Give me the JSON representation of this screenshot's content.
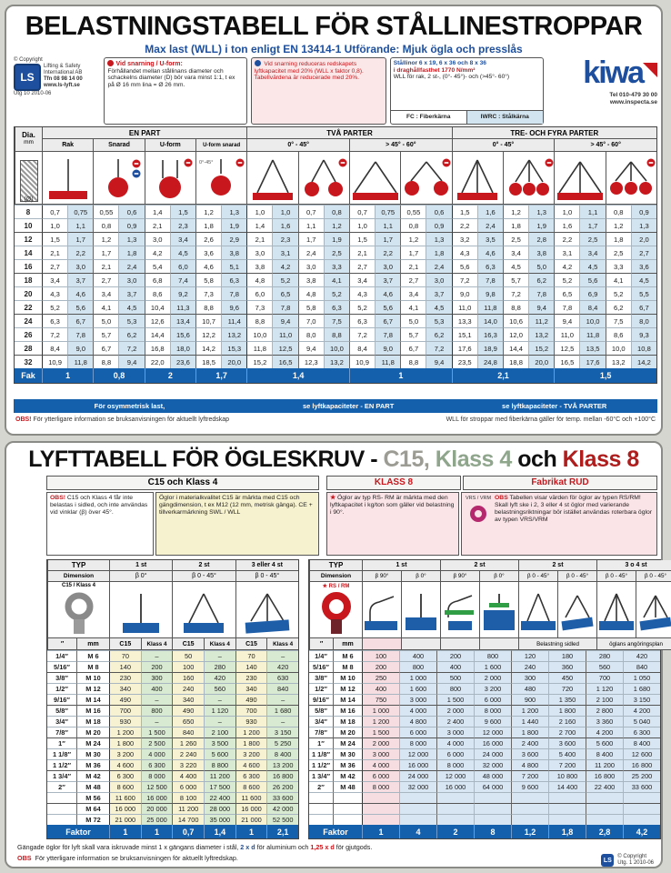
{
  "upper": {
    "title": "BELASTNINGSTABELL FÖR STÅLLINESTROPPAR",
    "subtitle": "Max last (WLL) i ton enligt EN 13414-1   Utförande: Mjuk ögla och presslås",
    "publisher": {
      "copyright": "© Copyright",
      "name1": "Lifting & Safety",
      "name2": "International AB",
      "phone": "Tfn  08 98 14 00",
      "web": "www.ls-lyft.se",
      "edition": "Utg 10  2010-06"
    },
    "info1": {
      "title": "Vid snarning / U-form:",
      "body": "Förhållandet mellan stållinans diameter och schackelns diameter (D) bör vara minst 1:1, t ex på Ø 16 mm lina = Ø 26 mm."
    },
    "info2": {
      "body": "Vid snarning reduceras redskapets lyftkapacitet med 20% (WLL x faktor 0,8). Tabellvärdena är reducerade med 20%."
    },
    "info3": {
      "line1": "Stållinor 6 x 19, 6 x 36 och 8 x 36",
      "line2": "i draghållfasthet 1770 N/mm²",
      "line3": "WLL för rak, 2 st-, (0°- 45°)- och (>45°- 60°)",
      "fc": "FC : Fiberkärna",
      "iwrc": "IWRC : Stålkärna"
    },
    "brand": {
      "name": "kiwa",
      "phone": "Tel 010-479 30 00",
      "web": "www.inspecta.se"
    },
    "table": {
      "dia_header": "Dia.",
      "dia_mm": "mm",
      "dia_unit": "(Ø)",
      "groups": [
        "EN PART",
        "TVÅ PARTER",
        "TRE- OCH FYRA PARTER"
      ],
      "subheaders": [
        "Rak",
        "Snarad",
        "U-form",
        "U-form snarad",
        "0° - 45°",
        "> 45° - 60°",
        "0° - 45°",
        "> 45° - 60°"
      ],
      "rows": [
        [
          "8",
          "0,7",
          "0,75",
          "0,55",
          "0,6",
          "1,4",
          "1,5",
          "1,2",
          "1,3",
          "1,0",
          "1,0",
          "0,7",
          "0,8",
          "0,7",
          "0,75",
          "0,55",
          "0,6",
          "1,5",
          "1,6",
          "1,2",
          "1,3",
          "1,0",
          "1,1",
          "0,8",
          "0,9"
        ],
        [
          "10",
          "1,0",
          "1,1",
          "0,8",
          "0,9",
          "2,1",
          "2,3",
          "1,8",
          "1,9",
          "1,4",
          "1,6",
          "1,1",
          "1,2",
          "1,0",
          "1,1",
          "0,8",
          "0,9",
          "2,2",
          "2,4",
          "1,8",
          "1,9",
          "1,6",
          "1,7",
          "1,2",
          "1,3"
        ],
        [
          "12",
          "1,5",
          "1,7",
          "1,2",
          "1,3",
          "3,0",
          "3,4",
          "2,6",
          "2,9",
          "2,1",
          "2,3",
          "1,7",
          "1,9",
          "1,5",
          "1,7",
          "1,2",
          "1,3",
          "3,2",
          "3,5",
          "2,5",
          "2,8",
          "2,2",
          "2,5",
          "1,8",
          "2,0"
        ],
        [
          "14",
          "2,1",
          "2,2",
          "1,7",
          "1,8",
          "4,2",
          "4,5",
          "3,6",
          "3,8",
          "3,0",
          "3,1",
          "2,4",
          "2,5",
          "2,1",
          "2,2",
          "1,7",
          "1,8",
          "4,3",
          "4,6",
          "3,4",
          "3,8",
          "3,1",
          "3,4",
          "2,5",
          "2,7"
        ],
        [
          "16",
          "2,7",
          "3,0",
          "2,1",
          "2,4",
          "5,4",
          "6,0",
          "4,6",
          "5,1",
          "3,8",
          "4,2",
          "3,0",
          "3,3",
          "2,7",
          "3,0",
          "2,1",
          "2,4",
          "5,6",
          "6,3",
          "4,5",
          "5,0",
          "4,2",
          "4,5",
          "3,3",
          "3,6"
        ],
        [
          "18",
          "3,4",
          "3,7",
          "2,7",
          "3,0",
          "6,8",
          "7,4",
          "5,8",
          "6,3",
          "4,8",
          "5,2",
          "3,8",
          "4,1",
          "3,4",
          "3,7",
          "2,7",
          "3,0",
          "7,2",
          "7,8",
          "5,7",
          "6,2",
          "5,2",
          "5,6",
          "4,1",
          "4,5"
        ],
        [
          "20",
          "4,3",
          "4,6",
          "3,4",
          "3,7",
          "8,6",
          "9,2",
          "7,3",
          "7,8",
          "6,0",
          "6,5",
          "4,8",
          "5,2",
          "4,3",
          "4,6",
          "3,4",
          "3,7",
          "9,0",
          "9,8",
          "7,2",
          "7,8",
          "6,5",
          "6,9",
          "5,2",
          "5,5"
        ],
        [
          "22",
          "5,2",
          "5,6",
          "4,1",
          "4,5",
          "10,4",
          "11,3",
          "8,8",
          "9,6",
          "7,3",
          "7,8",
          "5,8",
          "6,3",
          "5,2",
          "5,6",
          "4,1",
          "4,5",
          "11,0",
          "11,8",
          "8,8",
          "9,4",
          "7,8",
          "8,4",
          "6,2",
          "6,7"
        ],
        [
          "24",
          "6,3",
          "6,7",
          "5,0",
          "5,3",
          "12,6",
          "13,4",
          "10,7",
          "11,4",
          "8,8",
          "9,4",
          "7,0",
          "7,5",
          "6,3",
          "6,7",
          "5,0",
          "5,3",
          "13,3",
          "14,0",
          "10,6",
          "11,2",
          "9,4",
          "10,0",
          "7,5",
          "8,0"
        ],
        [
          "26",
          "7,2",
          "7,8",
          "5,7",
          "6,2",
          "14,4",
          "15,6",
          "12,2",
          "13,2",
          "10,0",
          "11,0",
          "8,0",
          "8,8",
          "7,2",
          "7,8",
          "5,7",
          "6,2",
          "15,1",
          "16,3",
          "12,0",
          "13,2",
          "11,0",
          "11,8",
          "8,6",
          "9,3"
        ],
        [
          "28",
          "8,4",
          "9,0",
          "6,7",
          "7,2",
          "16,8",
          "18,0",
          "14,2",
          "15,3",
          "11,8",
          "12,5",
          "9,4",
          "10,0",
          "8,4",
          "9,0",
          "6,7",
          "7,2",
          "17,6",
          "18,9",
          "14,4",
          "15,2",
          "12,5",
          "13,5",
          "10,0",
          "10,8"
        ],
        [
          "32",
          "10,9",
          "11,8",
          "8,8",
          "9,4",
          "22,0",
          "23,6",
          "18,5",
          "20,0",
          "15,2",
          "16,5",
          "12,3",
          "13,2",
          "10,9",
          "11,8",
          "8,8",
          "9,4",
          "23,5",
          "24,8",
          "18,8",
          "20,0",
          "16,5",
          "17,6",
          "13,2",
          "14,2"
        ]
      ],
      "factor_label": "Fak",
      "factors": [
        "1",
        "0,8",
        "2",
        "1,7",
        "1,4",
        "1",
        "2,1",
        "1,5"
      ],
      "notes_blue": [
        "För osymmetrisk last,",
        "se lyftkapaciteter - EN PART",
        "se lyftkapaciteter - TVÅ PARTER"
      ],
      "obs_label": "OBS!",
      "obs_text": "För ytterligare information se bruksanvisningen för aktuellt lyftredskap",
      "note_right": "WLL för stroppar med fiberkärna gäller för temp. mellan -60°C och +100°C"
    }
  },
  "lower": {
    "title_parts": [
      "LYFTTABELL FÖR ÖGLESKRUV - ",
      "C15, ",
      "Klass 4 ",
      "och ",
      "Klass 8"
    ],
    "c15": {
      "header": "C15 och Klass 4",
      "obs_label": "OBS!",
      "obs_text": "C15 och Klass 4 får inte belastas i sidled, och inte användas vid vinklar (β) över 45°.",
      "info_text": "Öglor i materialkvalitet C15 är märkta med C15 och gängdimension, t ex M12 (12 mm, metrisk gänga). CE + tillverkarmärkning SWL / WLL"
    },
    "k8": {
      "header1": "KLASS 8",
      "header2": "Fabrikat RUD",
      "star_text": "Öglor av typ RS- RM är märkta med den lyftkapacitet i kg/ton som gäller vid belastning i 90°.",
      "obs_label": "OBS",
      "obs_text": "Tabellen visar värden för öglor av typen RS/RM! Skall lyft ske i 2, 3 eller 4 st öglor med varierande belastningsriktningar bör istället användas roterbara öglor av typen VRS/VRM",
      "icon_label": "VRS / VRM"
    },
    "left_table": {
      "type_label": "TYP",
      "dim_label": "Dimension",
      "groups": [
        "1 st",
        "2 st",
        "3 eller 4 st"
      ],
      "betas": [
        "β 0°",
        "β 0 - 45°",
        "β 0 - 45°"
      ],
      "eyebolt_label": "C15 / Klass 4",
      "colheads": [
        "″",
        "mm",
        "C15",
        "Klass 4",
        "C15",
        "Klass 4",
        "C15",
        "Klass 4"
      ],
      "rows": [
        [
          "1/4″",
          "M 6",
          "70",
          "–",
          "50",
          "–",
          "70",
          "–"
        ],
        [
          "5/16″",
          "M 8",
          "140",
          "200",
          "100",
          "280",
          "140",
          "420"
        ],
        [
          "3/8″",
          "M 10",
          "230",
          "300",
          "160",
          "420",
          "230",
          "630"
        ],
        [
          "1/2″",
          "M 12",
          "340",
          "400",
          "240",
          "560",
          "340",
          "840"
        ],
        [
          "9/16″",
          "M 14",
          "490",
          "–",
          "340",
          "–",
          "490",
          "–"
        ],
        [
          "5/8″",
          "M 16",
          "700",
          "800",
          "490",
          "1 120",
          "700",
          "1 680"
        ],
        [
          "3/4″",
          "M 18",
          "930",
          "–",
          "650",
          "–",
          "930",
          "–"
        ],
        [
          "7/8″",
          "M 20",
          "1 200",
          "1 500",
          "840",
          "2 100",
          "1 200",
          "3 150"
        ],
        [
          "1″",
          "M 24",
          "1 800",
          "2 500",
          "1 260",
          "3 500",
          "1 800",
          "5 250"
        ],
        [
          "1 1/8″",
          "M 30",
          "3 200",
          "4 000",
          "2 240",
          "5 600",
          "3 200",
          "8 400"
        ],
        [
          "1 1/2″",
          "M 36",
          "4 600",
          "6 300",
          "3 220",
          "8 800",
          "4 600",
          "13 200"
        ],
        [
          "1 3/4″",
          "M 42",
          "6 300",
          "8 000",
          "4 400",
          "11 200",
          "6 300",
          "16 800"
        ],
        [
          "2″",
          "M 48",
          "8 600",
          "12 500",
          "6 000",
          "17 500",
          "8 600",
          "26 200"
        ],
        [
          "",
          "M 56",
          "11 600",
          "16 000",
          "8 100",
          "22 400",
          "11 600",
          "33 600"
        ],
        [
          "",
          "M 64",
          "16 000",
          "20 000",
          "11 200",
          "28 000",
          "16 000",
          "42 000"
        ],
        [
          "",
          "M 72",
          "21 000",
          "25 000",
          "14 700",
          "35 000",
          "21 000",
          "52 500"
        ]
      ],
      "factor_label": "Faktor",
      "factors": [
        "1",
        "1",
        "0,7",
        "1,4",
        "1",
        "2,1"
      ]
    },
    "right_table": {
      "type_label": "TYP",
      "dim_label": "Dimension",
      "groups": [
        "1 st",
        "2 st",
        "2 st",
        "3 o 4 st"
      ],
      "betas": [
        "β 90°",
        "β 0°",
        "β 90°",
        "β 0°",
        "β 0 - 45°",
        "β 0 - 45°",
        "β 0 - 45°",
        "β 0 - 45°"
      ],
      "span_labels": [
        "Belastning sidled",
        "öglans angöringsplan"
      ],
      "eyebolt_label": "★ RS / RM",
      "colheads": [
        "″",
        "mm"
      ],
      "rows": [
        [
          "1/4″",
          "M 6",
          "100",
          "400",
          "200",
          "800",
          "120",
          "180",
          "280",
          "420"
        ],
        [
          "5/16″",
          "M 8",
          "200",
          "800",
          "400",
          "1 600",
          "240",
          "360",
          "560",
          "840"
        ],
        [
          "3/8″",
          "M 10",
          "250",
          "1 000",
          "500",
          "2 000",
          "300",
          "450",
          "700",
          "1 050"
        ],
        [
          "1/2″",
          "M 12",
          "400",
          "1 600",
          "800",
          "3 200",
          "480",
          "720",
          "1 120",
          "1 680"
        ],
        [
          "9/16″",
          "M 14",
          "750",
          "3 000",
          "1 500",
          "6 000",
          "900",
          "1 350",
          "2 100",
          "3 150"
        ],
        [
          "5/8″",
          "M 16",
          "1 000",
          "4 000",
          "2 000",
          "8 000",
          "1 200",
          "1 800",
          "2 800",
          "4 200"
        ],
        [
          "3/4″",
          "M 18",
          "1 200",
          "4 800",
          "2 400",
          "9 600",
          "1 440",
          "2 160",
          "3 360",
          "5 040"
        ],
        [
          "7/8″",
          "M 20",
          "1 500",
          "6 000",
          "3 000",
          "12 000",
          "1 800",
          "2 700",
          "4 200",
          "6 300"
        ],
        [
          "1″",
          "M 24",
          "2 000",
          "8 000",
          "4 000",
          "16 000",
          "2 400",
          "3 600",
          "5 600",
          "8 400"
        ],
        [
          "1 1/8″",
          "M 30",
          "3 000",
          "12 000",
          "6 000",
          "24 000",
          "3 600",
          "5 400",
          "8 400",
          "12 600"
        ],
        [
          "1 1/2″",
          "M 36",
          "4 000",
          "16 000",
          "8 000",
          "32 000",
          "4 800",
          "7 200",
          "11 200",
          "16 800"
        ],
        [
          "1 3/4″",
          "M 42",
          "6 000",
          "24 000",
          "12 000",
          "48 000",
          "7 200",
          "10 800",
          "16 800",
          "25 200"
        ],
        [
          "2″",
          "M 48",
          "8 000",
          "32 000",
          "16 000",
          "64 000",
          "9 600",
          "14 400",
          "22 400",
          "33 600"
        ],
        [
          "",
          "",
          "",
          "",
          "",
          "",
          "",
          "",
          "",
          ""
        ],
        [
          "",
          "",
          "",
          "",
          "",
          "",
          "",
          "",
          "",
          ""
        ],
        [
          "",
          "",
          "",
          "",
          "",
          "",
          "",
          "",
          "",
          ""
        ]
      ],
      "factor_label": "Faktor",
      "factors": [
        "1",
        "4",
        "2",
        "8",
        "1,2",
        "1,8",
        "2,8",
        "4,2"
      ]
    },
    "note1": {
      "a": "Gängade öglor för lyft skall vara iskruvade minst 1 x gängans diameter i stål, ",
      "b": "2 x d",
      "c": " för aluminium och ",
      "d": "1,25 x d",
      "e": " för gjutgods."
    },
    "note2_label": "OBS",
    "note2_text": " För ytterligare information se bruksanvisningen för aktuellt lyftredskap.",
    "footer": {
      "copyright": "© Copyright",
      "edition": "Utg. 1  2010-06"
    }
  }
}
